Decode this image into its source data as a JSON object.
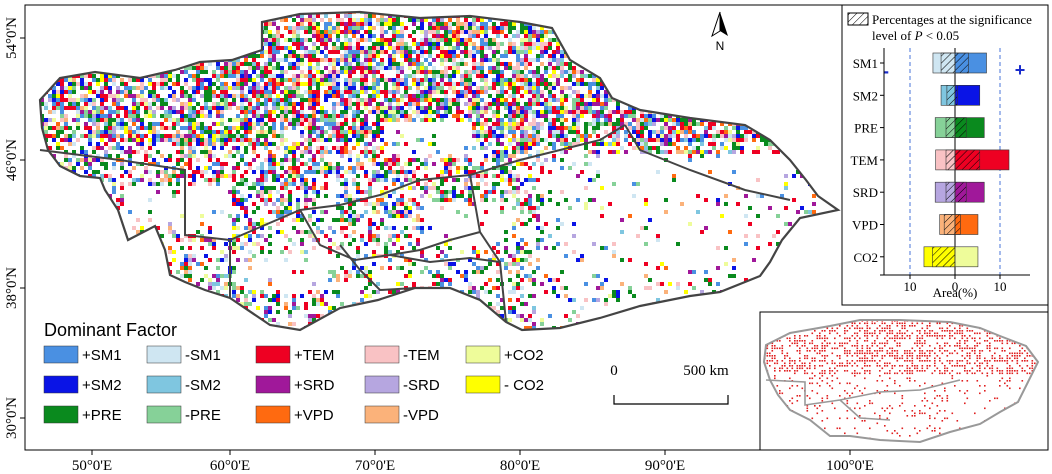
{
  "map": {
    "longitude_ticks": [
      "50°0'E",
      "60°0'E",
      "70°0'E",
      "80°0'E",
      "90°0'E",
      "100°0'E"
    ],
    "latitude_ticks": [
      "54°0'N",
      "46°0'N",
      "38°0'N",
      "30°0'N"
    ],
    "north_arrow": "N",
    "scale_bar": {
      "start": "0",
      "end": "500 km"
    }
  },
  "legend": {
    "title": "Dominant Factor",
    "items": [
      {
        "label": "+SM1",
        "color": "#4a90e2"
      },
      {
        "label": "-SM1",
        "color": "#cfe6f2"
      },
      {
        "label": "+TEM",
        "color": "#ee0022"
      },
      {
        "label": "-TEM",
        "color": "#f9c2c4"
      },
      {
        "label": "+CO2",
        "color": "#eefc9a"
      },
      {
        "label": "+SM2",
        "color": "#0a14e6"
      },
      {
        "label": "-SM2",
        "color": "#7fc6e0"
      },
      {
        "label": "+SRD",
        "color": "#a0189a"
      },
      {
        "label": "-SRD",
        "color": "#b6a6e0"
      },
      {
        "label": "- CO2",
        "color": "#ffff00"
      },
      {
        "label": "+PRE",
        "color": "#0a8a1e"
      },
      {
        "label": "-PRE",
        "color": "#86d198"
      },
      {
        "label": "+VPD",
        "color": "#ff6a10"
      },
      {
        "label": "-VPD",
        "color": "#fbb27a"
      }
    ]
  },
  "inset_bar": {
    "hatch_legend_line1": "Percentages at the significance",
    "hatch_legend_line2_prefix": "level of ",
    "hatch_legend_italic": "P",
    "hatch_legend_line2_suffix": " < 0.05",
    "minus_sign": "-",
    "plus_sign": "+",
    "xlabel": "Area(%)",
    "xticks": [
      "10",
      "0",
      "10"
    ]
  },
  "chart_data": {
    "type": "bar",
    "orientation": "horizontal-diverging",
    "categories": [
      "SM1",
      "SM2",
      "PRE",
      "TEM",
      "SRD",
      "VPD",
      "CO2"
    ],
    "series": [
      {
        "name": "negative",
        "values": [
          -4.9,
          -3.1,
          -4.4,
          -4.3,
          -4.4,
          -3.4,
          -6.9
        ],
        "colors": [
          "#cfe6f2",
          "#7fc6e0",
          "#86d198",
          "#f9c2c4",
          "#b6a6e0",
          "#fbb27a",
          "#ffff00"
        ]
      },
      {
        "name": "positive",
        "values": [
          7.0,
          5.5,
          6.5,
          12.0,
          6.5,
          5.1,
          5.1
        ],
        "colors": [
          "#4a90e2",
          "#0a14e6",
          "#0a8a1e",
          "#ee0022",
          "#a0189a",
          "#ff6a10",
          "#eefc9a"
        ]
      }
    ],
    "significant_negative": [
      -3.1,
      -1.8,
      -2.0,
      -2.0,
      -2.0,
      -2.4,
      -5.0
    ],
    "significant_positive": [
      3.0,
      0.5,
      2.5,
      5.5,
      2.5,
      1.2,
      0
    ],
    "xlim": [
      -13,
      13
    ],
    "reference_lines": [
      -10,
      10
    ],
    "xlabel": "Area(%)"
  }
}
